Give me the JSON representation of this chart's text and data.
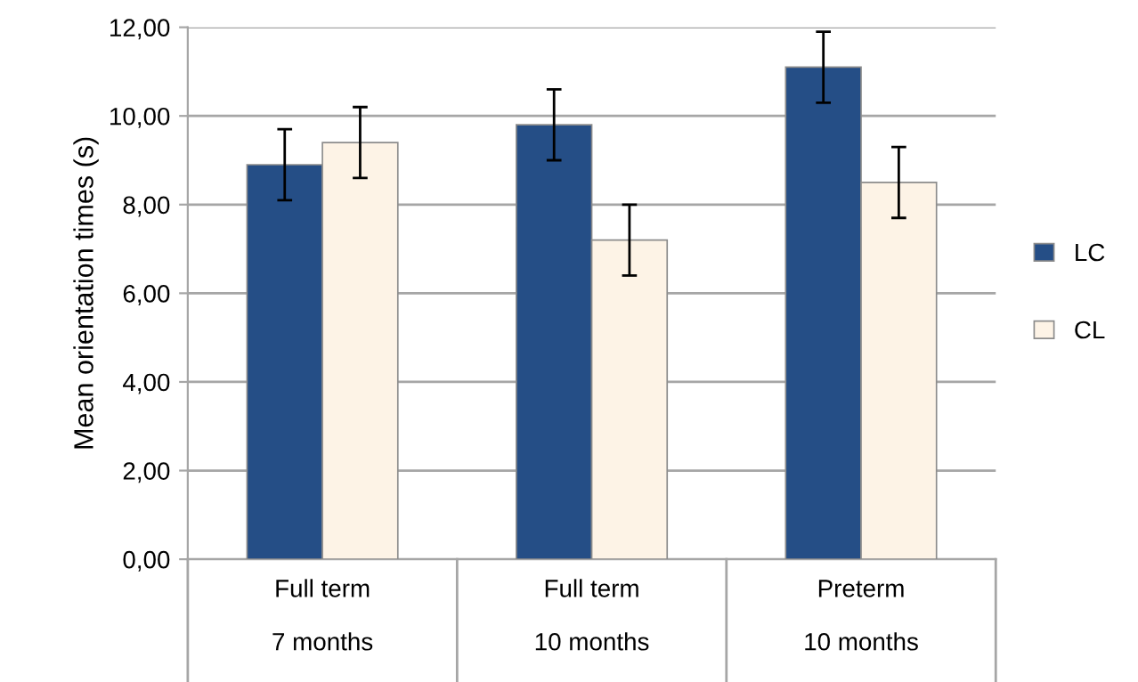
{
  "chart_data": {
    "type": "bar",
    "ylabel": "Mean orientation times (s)",
    "categories": [
      "Full term\n\n7 months",
      "Full term\n\n10 months",
      "Preterm\n\n10 months"
    ],
    "series": [
      {
        "name": "LC",
        "color": "#254e86",
        "values": [
          8.9,
          9.8,
          11.1
        ],
        "errors": [
          0.8,
          0.8,
          0.8
        ]
      },
      {
        "name": "CL",
        "color": "#fdf3e6",
        "values": [
          9.4,
          7.2,
          8.5
        ],
        "errors": [
          0.8,
          0.8,
          0.8
        ]
      }
    ],
    "ylim": [
      0,
      12
    ],
    "yticks": [
      {
        "value": 0,
        "label": "0,00"
      },
      {
        "value": 2,
        "label": "2,00"
      },
      {
        "value": 4,
        "label": "4,00"
      },
      {
        "value": 6,
        "label": "6,00"
      },
      {
        "value": 8,
        "label": "8,00"
      },
      {
        "value": 10,
        "label": "10,00"
      },
      {
        "value": 12,
        "label": "12,00"
      }
    ],
    "grid": "y",
    "legend": "right"
  }
}
